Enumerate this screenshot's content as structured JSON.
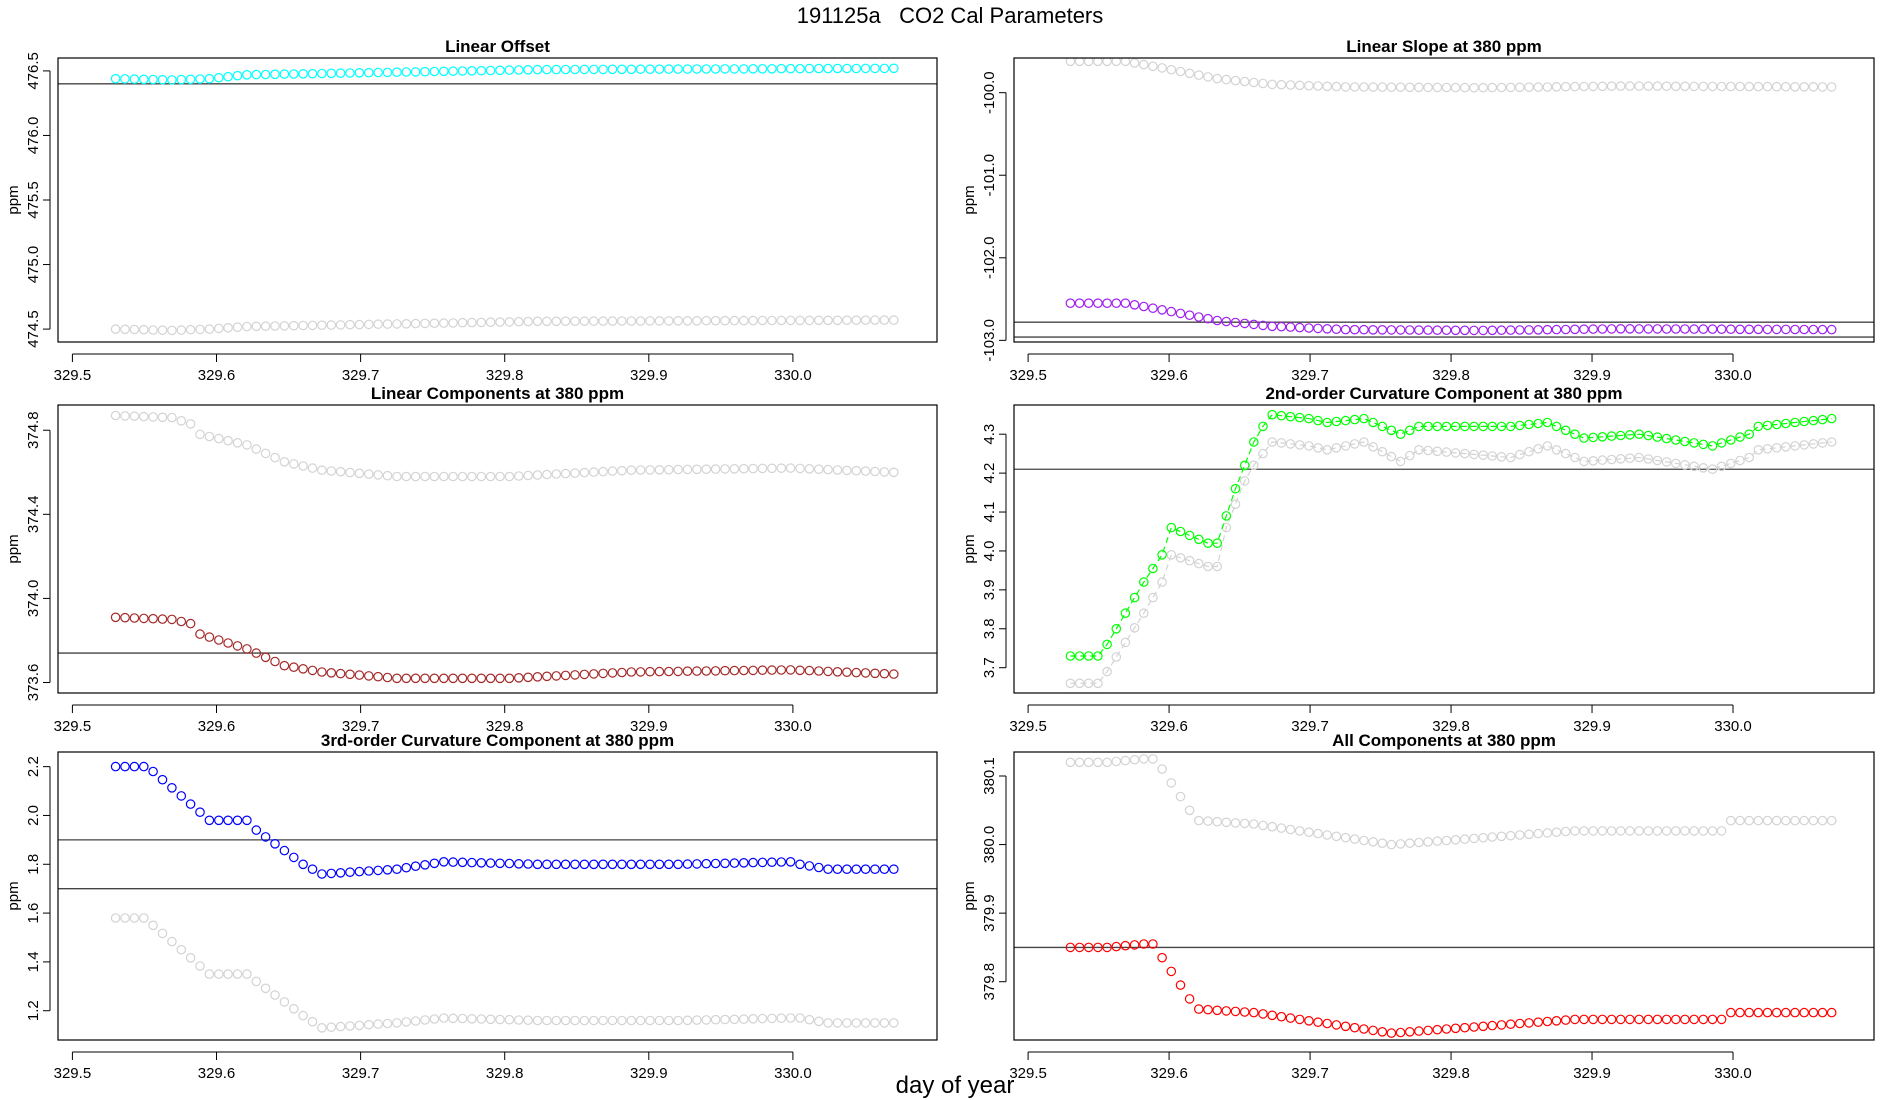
{
  "figure": {
    "id": "191125a",
    "title": "CO2 Cal Parameters",
    "xlabel": "day of year"
  },
  "chart_data": [
    {
      "type": "scatter",
      "title": "Linear Offset",
      "ylabel": "ppm",
      "xlim": [
        329.49,
        330.1
      ],
      "ylim": [
        474.4,
        476.6
      ],
      "xticks": [
        329.5,
        329.6,
        329.7,
        329.8,
        329.9,
        330.0
      ],
      "xtick_labels": [
        "329.5",
        "329.6",
        "329.7",
        "329.8",
        "329.9",
        "330.0"
      ],
      "yticks": [
        474.5,
        475.0,
        475.5,
        476.0,
        476.5
      ],
      "ytick_labels": [
        "474.5",
        "475.0",
        "475.5",
        "476.0",
        "476.5"
      ],
      "hlines": [
        476.4
      ],
      "x_range": [
        329.53,
        330.07
      ],
      "n_points": 84,
      "series": [
        {
          "name": "gray",
          "color": "#d3d3d3",
          "connected": false,
          "keyframes": [
            [
              0,
              474.5
            ],
            [
              6,
              474.49
            ],
            [
              10,
              474.5
            ],
            [
              14,
              474.52
            ],
            [
              30,
              474.54
            ],
            [
              45,
              474.56
            ],
            [
              83,
              474.57
            ]
          ]
        },
        {
          "name": "current",
          "color": "#00ffff",
          "connected": false,
          "keyframes": [
            [
              0,
              476.44
            ],
            [
              6,
              476.43
            ],
            [
              10,
              476.44
            ],
            [
              14,
              476.47
            ],
            [
              30,
              476.49
            ],
            [
              45,
              476.51
            ],
            [
              83,
              476.52
            ]
          ]
        }
      ]
    },
    {
      "type": "scatter",
      "title": "Linear Slope at 380 ppm",
      "ylabel": "ppm",
      "xlim": [
        329.49,
        330.1
      ],
      "ylim": [
        -103.02,
        -99.58
      ],
      "xticks": [
        329.5,
        329.6,
        329.7,
        329.8,
        329.9,
        330.0
      ],
      "xtick_labels": [
        "329.5",
        "329.6",
        "329.7",
        "329.8",
        "329.9",
        "330.0"
      ],
      "yticks": [
        -103.0,
        -102.0,
        -101.0,
        -100.0
      ],
      "ytick_labels": [
        "-103.0",
        "-102.0",
        "-101.0",
        "-100.0"
      ],
      "hlines": [
        -102.78,
        -102.96
      ],
      "x_range": [
        329.53,
        330.07
      ],
      "n_points": 84,
      "series": [
        {
          "name": "gray",
          "color": "#d3d3d3",
          "connected": false,
          "keyframes": [
            [
              0,
              -99.62
            ],
            [
              6,
              -99.62
            ],
            [
              10,
              -99.7
            ],
            [
              16,
              -99.83
            ],
            [
              22,
              -99.9
            ],
            [
              30,
              -99.93
            ],
            [
              45,
              -99.94
            ],
            [
              60,
              -99.92
            ],
            [
              83,
              -99.93
            ]
          ]
        },
        {
          "name": "current",
          "color": "#a020f0",
          "connected": false,
          "keyframes": [
            [
              0,
              -102.55
            ],
            [
              6,
              -102.55
            ],
            [
              10,
              -102.63
            ],
            [
              16,
              -102.76
            ],
            [
              22,
              -102.83
            ],
            [
              30,
              -102.87
            ],
            [
              45,
              -102.88
            ],
            [
              60,
              -102.86
            ],
            [
              83,
              -102.87
            ]
          ]
        }
      ]
    },
    {
      "type": "scatter",
      "title": "Linear Components at 380 ppm",
      "ylabel": "ppm",
      "xlim": [
        329.49,
        330.1
      ],
      "ylim": [
        373.55,
        374.92
      ],
      "xticks": [
        329.5,
        329.6,
        329.7,
        329.8,
        329.9,
        330.0
      ],
      "xtick_labels": [
        "329.5",
        "329.6",
        "329.7",
        "329.8",
        "329.9",
        "330.0"
      ],
      "yticks": [
        373.6,
        374.0,
        374.4,
        374.8
      ],
      "ytick_labels": [
        "373.6",
        "374.0",
        "374.4",
        "374.8"
      ],
      "hlines": [
        373.74
      ],
      "x_range": [
        329.53,
        330.07
      ],
      "n_points": 84,
      "series": [
        {
          "name": "gray",
          "color": "#d3d3d3",
          "connected": false,
          "keyframes": [
            [
              0,
              374.87
            ],
            [
              6,
              374.86
            ],
            [
              8,
              374.83
            ],
            [
              9,
              374.78
            ],
            [
              14,
              374.73
            ],
            [
              18,
              374.65
            ],
            [
              22,
              374.61
            ],
            [
              30,
              374.58
            ],
            [
              42,
              374.58
            ],
            [
              55,
              374.61
            ],
            [
              72,
              374.62
            ],
            [
              83,
              374.6
            ]
          ]
        },
        {
          "name": "current",
          "color": "#a52a2a",
          "connected": false,
          "keyframes": [
            [
              0,
              373.91
            ],
            [
              6,
              373.9
            ],
            [
              8,
              373.88
            ],
            [
              9,
              373.83
            ],
            [
              14,
              373.76
            ],
            [
              18,
              373.68
            ],
            [
              22,
              373.65
            ],
            [
              30,
              373.62
            ],
            [
              42,
              373.62
            ],
            [
              55,
              373.65
            ],
            [
              72,
              373.66
            ],
            [
              83,
              373.64
            ]
          ]
        }
      ]
    },
    {
      "type": "scatter",
      "title": "2nd-order Curvature Component at 380 ppm",
      "ylabel": "ppm",
      "xlim": [
        329.49,
        330.1
      ],
      "ylim": [
        3.635,
        4.375
      ],
      "xticks": [
        329.5,
        329.6,
        329.7,
        329.8,
        329.9,
        330.0
      ],
      "xtick_labels": [
        "329.5",
        "329.6",
        "329.7",
        "329.8",
        "329.9",
        "330.0"
      ],
      "yticks": [
        3.7,
        3.8,
        3.9,
        4.0,
        4.1,
        4.2,
        4.3
      ],
      "ytick_labels": [
        "3.7",
        "3.8",
        "3.9",
        "4.0",
        "4.1",
        "4.2",
        "4.3"
      ],
      "hlines": [
        4.21
      ],
      "x_range": [
        329.53,
        330.07
      ],
      "n_points": 84,
      "series": [
        {
          "name": "gray",
          "color": "#d3d3d3",
          "connected": true,
          "keyframes": [
            [
              0,
              3.66
            ],
            [
              3,
              3.66
            ],
            [
              4,
              3.69
            ],
            [
              8,
              3.84
            ],
            [
              10,
              3.92
            ],
            [
              11,
              3.99
            ],
            [
              15,
              3.96
            ],
            [
              16,
              3.96
            ],
            [
              17,
              4.06
            ],
            [
              18,
              4.12
            ],
            [
              19,
              4.18
            ],
            [
              20,
              4.22
            ],
            [
              21,
              4.25
            ],
            [
              22,
              4.28
            ],
            [
              26,
              4.27
            ],
            [
              28,
              4.26
            ],
            [
              32,
              4.28
            ],
            [
              36,
              4.23
            ],
            [
              38,
              4.26
            ],
            [
              48,
              4.24
            ],
            [
              52,
              4.27
            ],
            [
              56,
              4.23
            ],
            [
              62,
              4.24
            ],
            [
              70,
              4.21
            ],
            [
              74,
              4.24
            ],
            [
              75,
              4.26
            ],
            [
              83,
              4.28
            ]
          ]
        },
        {
          "name": "current",
          "color": "#00ff00",
          "connected": true,
          "keyframes": [
            [
              0,
              3.73
            ],
            [
              3,
              3.73
            ],
            [
              4,
              3.76
            ],
            [
              8,
              3.92
            ],
            [
              10,
              3.99
            ],
            [
              11,
              4.06
            ],
            [
              15,
              4.02
            ],
            [
              16,
              4.02
            ],
            [
              17,
              4.09
            ],
            [
              18,
              4.16
            ],
            [
              19,
              4.22
            ],
            [
              20,
              4.28
            ],
            [
              21,
              4.32
            ],
            [
              22,
              4.35
            ],
            [
              26,
              4.34
            ],
            [
              28,
              4.33
            ],
            [
              32,
              4.34
            ],
            [
              36,
              4.3
            ],
            [
              38,
              4.32
            ],
            [
              48,
              4.32
            ],
            [
              52,
              4.33
            ],
            [
              56,
              4.29
            ],
            [
              62,
              4.3
            ],
            [
              70,
              4.27
            ],
            [
              74,
              4.3
            ],
            [
              75,
              4.32
            ],
            [
              83,
              4.34
            ]
          ]
        }
      ]
    },
    {
      "type": "scatter",
      "title": "3rd-order Curvature Component at 380 ppm",
      "ylabel": "ppm",
      "xlim": [
        329.49,
        330.1
      ],
      "ylim": [
        1.08,
        2.26
      ],
      "xticks": [
        329.5,
        329.6,
        329.7,
        329.8,
        329.9,
        330.0
      ],
      "xtick_labels": [
        "329.5",
        "329.6",
        "329.7",
        "329.8",
        "329.9",
        "330.0"
      ],
      "yticks": [
        1.2,
        1.4,
        1.6,
        1.8,
        2.0,
        2.2
      ],
      "ytick_labels": [
        "1.2",
        "1.4",
        "1.6",
        "1.8",
        "2.0",
        "2.2"
      ],
      "hlines": [
        1.9,
        1.7
      ],
      "x_range": [
        329.53,
        330.07
      ],
      "n_points": 84,
      "series": [
        {
          "name": "gray",
          "color": "#d3d3d3",
          "connected": false,
          "keyframes": [
            [
              0,
              1.58
            ],
            [
              3,
              1.58
            ],
            [
              4,
              1.55
            ],
            [
              10,
              1.35
            ],
            [
              14,
              1.35
            ],
            [
              15,
              1.32
            ],
            [
              20,
              1.18
            ],
            [
              22,
              1.13
            ],
            [
              30,
              1.15
            ],
            [
              35,
              1.17
            ],
            [
              45,
              1.16
            ],
            [
              60,
              1.16
            ],
            [
              72,
              1.17
            ],
            [
              73,
              1.17
            ],
            [
              76,
              1.15
            ],
            [
              83,
              1.15
            ]
          ]
        },
        {
          "name": "current",
          "color": "#0000ff",
          "connected": false,
          "keyframes": [
            [
              0,
              2.2
            ],
            [
              3,
              2.2
            ],
            [
              4,
              2.18
            ],
            [
              10,
              1.98
            ],
            [
              14,
              1.98
            ],
            [
              15,
              1.94
            ],
            [
              20,
              1.8
            ],
            [
              22,
              1.76
            ],
            [
              30,
              1.78
            ],
            [
              35,
              1.81
            ],
            [
              45,
              1.8
            ],
            [
              60,
              1.8
            ],
            [
              72,
              1.81
            ],
            [
              73,
              1.8
            ],
            [
              76,
              1.78
            ],
            [
              83,
              1.78
            ]
          ]
        }
      ]
    },
    {
      "type": "scatter",
      "title": "All Components at 380 ppm",
      "ylabel": "ppm",
      "xlim": [
        329.49,
        330.1
      ],
      "ylim": [
        379.715,
        380.135
      ],
      "xticks": [
        329.5,
        329.6,
        329.7,
        329.8,
        329.9,
        330.0
      ],
      "xtick_labels": [
        "329.5",
        "329.6",
        "329.7",
        "329.8",
        "329.9",
        "330.0"
      ],
      "yticks": [
        379.8,
        379.9,
        380.0,
        380.1
      ],
      "ytick_labels": [
        "379.8",
        "379.9",
        "380.0",
        "380.1"
      ],
      "hlines": [
        379.85
      ],
      "x_range": [
        329.53,
        330.07
      ],
      "n_points": 84,
      "series": [
        {
          "name": "gray",
          "color": "#d3d3d3",
          "connected": false,
          "keyframes": [
            [
              0,
              380.12
            ],
            [
              4,
              380.12
            ],
            [
              8,
              380.125
            ],
            [
              9,
              380.125
            ],
            [
              10,
              380.11
            ],
            [
              13,
              380.05
            ],
            [
              14,
              380.035
            ],
            [
              20,
              380.03
            ],
            [
              30,
              380.01
            ],
            [
              35,
              380.0
            ],
            [
              45,
              380.01
            ],
            [
              55,
              380.02
            ],
            [
              56,
              380.02
            ],
            [
              70,
              380.02
            ],
            [
              71,
              380.02
            ],
            [
              72,
              380.035
            ],
            [
              83,
              380.035
            ]
          ]
        },
        {
          "name": "current",
          "color": "#ff0000",
          "connected": false,
          "keyframes": [
            [
              0,
              379.85
            ],
            [
              4,
              379.85
            ],
            [
              8,
              379.855
            ],
            [
              9,
              379.855
            ],
            [
              10,
              379.835
            ],
            [
              13,
              379.775
            ],
            [
              14,
              379.76
            ],
            [
              20,
              379.755
            ],
            [
              30,
              379.735
            ],
            [
              35,
              379.725
            ],
            [
              45,
              379.735
            ],
            [
              55,
              379.745
            ],
            [
              56,
              379.745
            ],
            [
              70,
              379.745
            ],
            [
              71,
              379.745
            ],
            [
              72,
              379.755
            ],
            [
              83,
              379.755
            ]
          ]
        }
      ]
    }
  ]
}
